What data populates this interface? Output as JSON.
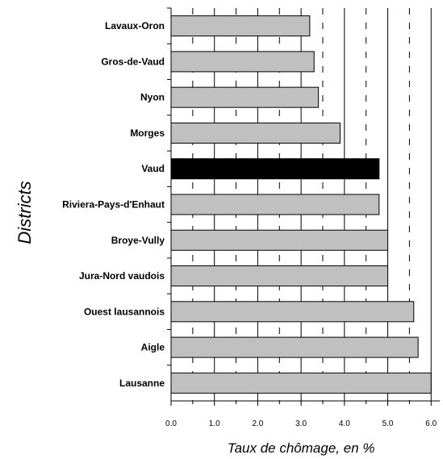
{
  "chart_data": {
    "type": "bar",
    "orientation": "horizontal",
    "title": "",
    "xlabel": "Taux de chômage, en %",
    "ylabel": "Districts",
    "xlim": [
      0,
      6.2
    ],
    "x_ticks": [
      "0.0",
      "1.0",
      "2.0",
      "3.0",
      "4.0",
      "5.0",
      "6.0"
    ],
    "grid": "vertical lines: solid at whole numbers, dashed at halves",
    "categories": [
      "Lavaux-Oron",
      "Gros-de-Vaud",
      "Nyon",
      "Morges",
      "Vaud",
      "Riviera-Pays-d'Enhaut",
      "Broye-Vully",
      "Jura-Nord vaudois",
      "Ouest lausannois",
      "Aigle",
      "Lausanne"
    ],
    "values": [
      3.2,
      3.3,
      3.4,
      3.9,
      4.8,
      4.8,
      5.0,
      5.0,
      5.6,
      5.7,
      6.0
    ],
    "colors": {
      "bar": "#c0c0c0",
      "highlight": "#000000",
      "highlight_category": "Vaud"
    }
  }
}
